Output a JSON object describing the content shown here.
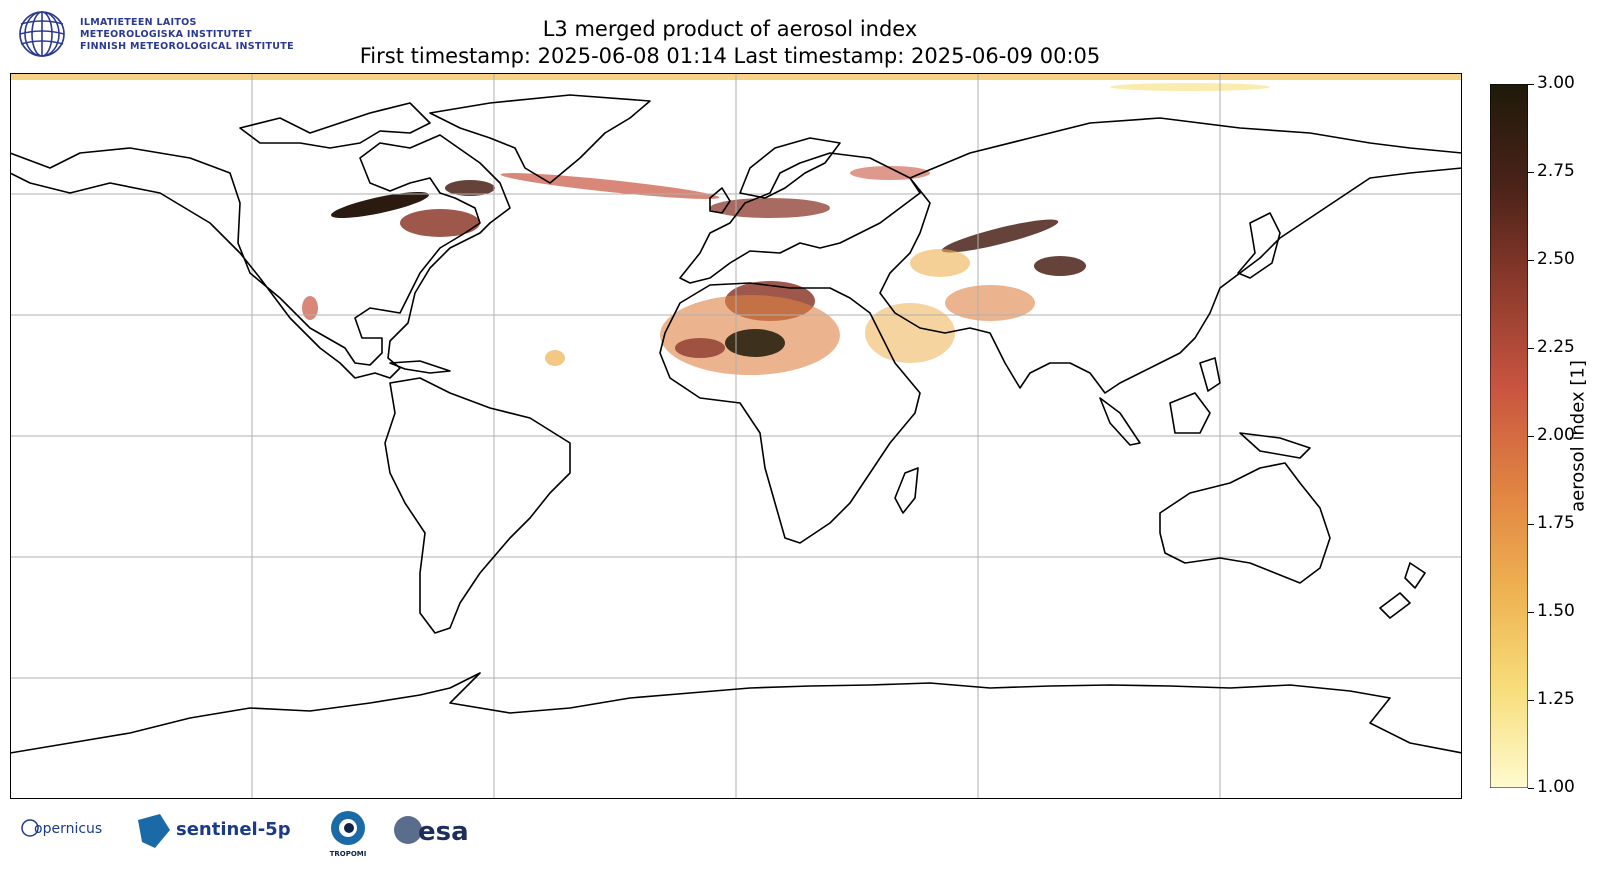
{
  "header": {
    "institute_lines": [
      "ILMATIETEEN LAITOS",
      "METEOROLOGISKA INSTITUTET",
      "FINNISH METEOROLOGICAL INSTITUTE"
    ],
    "title_line1": "L3 merged product of aerosol index",
    "title_line2": "First timestamp: 2025-06-08 01:14   Last timestamp: 2025-06-09 00:05"
  },
  "colorbar": {
    "label": "aerosol index [1]",
    "min": 1.0,
    "max": 3.0,
    "ticks": [
      "1.00",
      "1.25",
      "1.50",
      "1.75",
      "2.00",
      "2.25",
      "2.50",
      "2.75",
      "3.00"
    ],
    "colors": [
      "#fffbd0",
      "#f7dd7a",
      "#eeb050",
      "#e08242",
      "#c85440",
      "#8c3a2c",
      "#4a2218",
      "#1e1a0a"
    ]
  },
  "logos": {
    "copernicus": "opernicus",
    "sentinel": "sentinel-5p",
    "tropomi": "TROPOMI",
    "esa": "esa"
  }
}
